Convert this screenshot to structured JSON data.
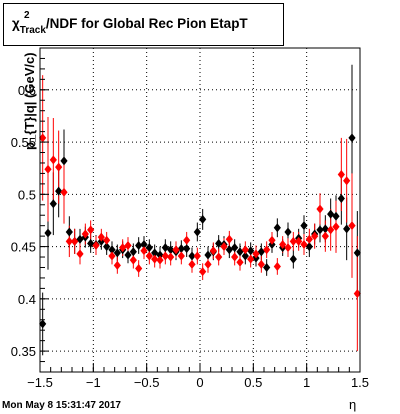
{
  "title": {
    "chi": "χ",
    "sup": "2",
    "sub": "Track",
    "rest": "/NDF for Global Rec Pion EtapT"
  },
  "timestamp": "Mon May  8 15:31:47 2017",
  "chart_data": {
    "type": "scatter",
    "xlabel": "η",
    "ylabel": "p_{T}|q| (GeV/c)",
    "xlim": [
      -1.5,
      1.5
    ],
    "ylim": [
      0.33,
      0.64
    ],
    "x_ticks": [
      "−1.5",
      "−1",
      "−0.5",
      "0",
      "0.5",
      "1",
      "1.5"
    ],
    "x_tick_values": [
      -1.5,
      -1,
      -0.5,
      0,
      0.5,
      1,
      1.5
    ],
    "y_ticks": [
      "0.35",
      "0.4",
      "0.45",
      "0.5",
      "0.55",
      "0.6"
    ],
    "y_tick_values": [
      0.35,
      0.4,
      0.45,
      0.5,
      0.55,
      0.6
    ],
    "grid": true,
    "series": [
      {
        "color": "#000000",
        "marker": "diamond",
        "points": [
          {
            "x": -1.475,
            "y": 0.376,
            "err": 0.03
          },
          {
            "x": -1.425,
            "y": 0.463,
            "err": 0.035
          },
          {
            "x": -1.375,
            "y": 0.491,
            "err": 0.03
          },
          {
            "x": -1.325,
            "y": 0.503,
            "err": 0.025
          },
          {
            "x": -1.275,
            "y": 0.532,
            "err": 0.03
          },
          {
            "x": -1.225,
            "y": 0.464,
            "err": 0.015
          },
          {
            "x": -1.175,
            "y": 0.455,
            "err": 0.012
          },
          {
            "x": -1.125,
            "y": 0.457,
            "err": 0.01
          },
          {
            "x": -1.075,
            "y": 0.459,
            "err": 0.01
          },
          {
            "x": -1.025,
            "y": 0.453,
            "err": 0.009
          },
          {
            "x": -0.975,
            "y": 0.452,
            "err": 0.009
          },
          {
            "x": -0.925,
            "y": 0.455,
            "err": 0.008
          },
          {
            "x": -0.875,
            "y": 0.45,
            "err": 0.008
          },
          {
            "x": -0.825,
            "y": 0.447,
            "err": 0.008
          },
          {
            "x": -0.775,
            "y": 0.444,
            "err": 0.008
          },
          {
            "x": -0.725,
            "y": 0.447,
            "err": 0.008
          },
          {
            "x": -0.675,
            "y": 0.442,
            "err": 0.008
          },
          {
            "x": -0.625,
            "y": 0.445,
            "err": 0.008
          },
          {
            "x": -0.575,
            "y": 0.451,
            "err": 0.008
          },
          {
            "x": -0.525,
            "y": 0.452,
            "err": 0.008
          },
          {
            "x": -0.475,
            "y": 0.449,
            "err": 0.008
          },
          {
            "x": -0.425,
            "y": 0.444,
            "err": 0.008
          },
          {
            "x": -0.375,
            "y": 0.442,
            "err": 0.008
          },
          {
            "x": -0.325,
            "y": 0.449,
            "err": 0.008
          },
          {
            "x": -0.275,
            "y": 0.447,
            "err": 0.008
          },
          {
            "x": -0.225,
            "y": 0.445,
            "err": 0.008
          },
          {
            "x": -0.175,
            "y": 0.448,
            "err": 0.008
          },
          {
            "x": -0.125,
            "y": 0.448,
            "err": 0.008
          },
          {
            "x": -0.075,
            "y": 0.441,
            "err": 0.008
          },
          {
            "x": -0.025,
            "y": 0.464,
            "err": 0.009
          },
          {
            "x": 0.025,
            "y": 0.476,
            "err": 0.01
          },
          {
            "x": 0.075,
            "y": 0.442,
            "err": 0.008
          },
          {
            "x": 0.125,
            "y": 0.445,
            "err": 0.008
          },
          {
            "x": 0.175,
            "y": 0.453,
            "err": 0.008
          },
          {
            "x": 0.225,
            "y": 0.452,
            "err": 0.008
          },
          {
            "x": 0.275,
            "y": 0.447,
            "err": 0.008
          },
          {
            "x": 0.325,
            "y": 0.449,
            "err": 0.008
          },
          {
            "x": 0.375,
            "y": 0.445,
            "err": 0.008
          },
          {
            "x": 0.425,
            "y": 0.441,
            "err": 0.008
          },
          {
            "x": 0.475,
            "y": 0.446,
            "err": 0.008
          },
          {
            "x": 0.525,
            "y": 0.439,
            "err": 0.008
          },
          {
            "x": 0.575,
            "y": 0.445,
            "err": 0.008
          },
          {
            "x": 0.625,
            "y": 0.43,
            "err": 0.008
          },
          {
            "x": 0.675,
            "y": 0.452,
            "err": 0.008
          },
          {
            "x": 0.725,
            "y": 0.468,
            "err": 0.009
          },
          {
            "x": 0.775,
            "y": 0.449,
            "err": 0.008
          },
          {
            "x": 0.825,
            "y": 0.464,
            "err": 0.009
          },
          {
            "x": 0.875,
            "y": 0.438,
            "err": 0.009
          },
          {
            "x": 0.925,
            "y": 0.458,
            "err": 0.009
          },
          {
            "x": 0.975,
            "y": 0.47,
            "err": 0.01
          },
          {
            "x": 1.025,
            "y": 0.45,
            "err": 0.01
          },
          {
            "x": 1.075,
            "y": 0.462,
            "err": 0.01
          },
          {
            "x": 1.125,
            "y": 0.466,
            "err": 0.012
          },
          {
            "x": 1.175,
            "y": 0.467,
            "err": 0.013
          },
          {
            "x": 1.225,
            "y": 0.481,
            "err": 0.015
          },
          {
            "x": 1.275,
            "y": 0.479,
            "err": 0.02
          },
          {
            "x": 1.325,
            "y": 0.496,
            "err": 0.025
          },
          {
            "x": 1.375,
            "y": 0.467,
            "err": 0.03
          },
          {
            "x": 1.425,
            "y": 0.554,
            "err": 0.07
          },
          {
            "x": 1.475,
            "y": 0.444,
            "err": 0.04
          }
        ]
      },
      {
        "color": "#ff0000",
        "marker": "diamond",
        "points": [
          {
            "x": -1.475,
            "y": 0.554,
            "err": 0.06
          },
          {
            "x": -1.425,
            "y": 0.524,
            "err": 0.05
          },
          {
            "x": -1.375,
            "y": 0.533,
            "err": 0.04
          },
          {
            "x": -1.325,
            "y": 0.526,
            "err": 0.035
          },
          {
            "x": -1.275,
            "y": 0.502,
            "err": 0.03
          },
          {
            "x": -1.225,
            "y": 0.455,
            "err": 0.015
          },
          {
            "x": -1.175,
            "y": 0.455,
            "err": 0.012
          },
          {
            "x": -1.125,
            "y": 0.443,
            "err": 0.01
          },
          {
            "x": -1.075,
            "y": 0.462,
            "err": 0.01
          },
          {
            "x": -1.025,
            "y": 0.466,
            "err": 0.009
          },
          {
            "x": -0.975,
            "y": 0.451,
            "err": 0.009
          },
          {
            "x": -0.925,
            "y": 0.459,
            "err": 0.008
          },
          {
            "x": -0.875,
            "y": 0.456,
            "err": 0.008
          },
          {
            "x": -0.825,
            "y": 0.441,
            "err": 0.008
          },
          {
            "x": -0.775,
            "y": 0.432,
            "err": 0.008
          },
          {
            "x": -0.725,
            "y": 0.449,
            "err": 0.008
          },
          {
            "x": -0.675,
            "y": 0.451,
            "err": 0.008
          },
          {
            "x": -0.625,
            "y": 0.437,
            "err": 0.008
          },
          {
            "x": -0.575,
            "y": 0.429,
            "err": 0.008
          },
          {
            "x": -0.525,
            "y": 0.446,
            "err": 0.008
          },
          {
            "x": -0.475,
            "y": 0.441,
            "err": 0.008
          },
          {
            "x": -0.425,
            "y": 0.438,
            "err": 0.008
          },
          {
            "x": -0.375,
            "y": 0.437,
            "err": 0.008
          },
          {
            "x": -0.325,
            "y": 0.441,
            "err": 0.008
          },
          {
            "x": -0.275,
            "y": 0.44,
            "err": 0.008
          },
          {
            "x": -0.225,
            "y": 0.447,
            "err": 0.008
          },
          {
            "x": -0.175,
            "y": 0.441,
            "err": 0.008
          },
          {
            "x": -0.125,
            "y": 0.456,
            "err": 0.008
          },
          {
            "x": -0.075,
            "y": 0.433,
            "err": 0.008
          },
          {
            "x": -0.025,
            "y": 0.441,
            "err": 0.008
          },
          {
            "x": 0.025,
            "y": 0.426,
            "err": 0.008
          },
          {
            "x": 0.075,
            "y": 0.433,
            "err": 0.008
          },
          {
            "x": 0.125,
            "y": 0.446,
            "err": 0.008
          },
          {
            "x": 0.175,
            "y": 0.44,
            "err": 0.008
          },
          {
            "x": 0.225,
            "y": 0.45,
            "err": 0.008
          },
          {
            "x": 0.275,
            "y": 0.457,
            "err": 0.008
          },
          {
            "x": 0.325,
            "y": 0.44,
            "err": 0.008
          },
          {
            "x": 0.375,
            "y": 0.435,
            "err": 0.008
          },
          {
            "x": 0.425,
            "y": 0.447,
            "err": 0.008
          },
          {
            "x": 0.475,
            "y": 0.438,
            "err": 0.008
          },
          {
            "x": 0.525,
            "y": 0.443,
            "err": 0.008
          },
          {
            "x": 0.575,
            "y": 0.433,
            "err": 0.008
          },
          {
            "x": 0.625,
            "y": 0.447,
            "err": 0.008
          },
          {
            "x": 0.675,
            "y": 0.456,
            "err": 0.008
          },
          {
            "x": 0.725,
            "y": 0.431,
            "err": 0.008
          },
          {
            "x": 0.775,
            "y": 0.452,
            "err": 0.008
          },
          {
            "x": 0.825,
            "y": 0.449,
            "err": 0.009
          },
          {
            "x": 0.875,
            "y": 0.455,
            "err": 0.009
          },
          {
            "x": 0.925,
            "y": 0.455,
            "err": 0.009
          },
          {
            "x": 0.975,
            "y": 0.452,
            "err": 0.01
          },
          {
            "x": 1.025,
            "y": 0.457,
            "err": 0.01
          },
          {
            "x": 1.075,
            "y": 0.46,
            "err": 0.012
          },
          {
            "x": 1.125,
            "y": 0.486,
            "err": 0.015
          },
          {
            "x": 1.175,
            "y": 0.46,
            "err": 0.015
          },
          {
            "x": 1.225,
            "y": 0.466,
            "err": 0.02
          },
          {
            "x": 1.275,
            "y": 0.469,
            "err": 0.025
          },
          {
            "x": 1.325,
            "y": 0.519,
            "err": 0.035
          },
          {
            "x": 1.375,
            "y": 0.513,
            "err": 0.04
          },
          {
            "x": 1.425,
            "y": 0.47,
            "err": 0.05
          },
          {
            "x": 1.475,
            "y": 0.405,
            "err": 0.055
          }
        ]
      }
    ]
  }
}
